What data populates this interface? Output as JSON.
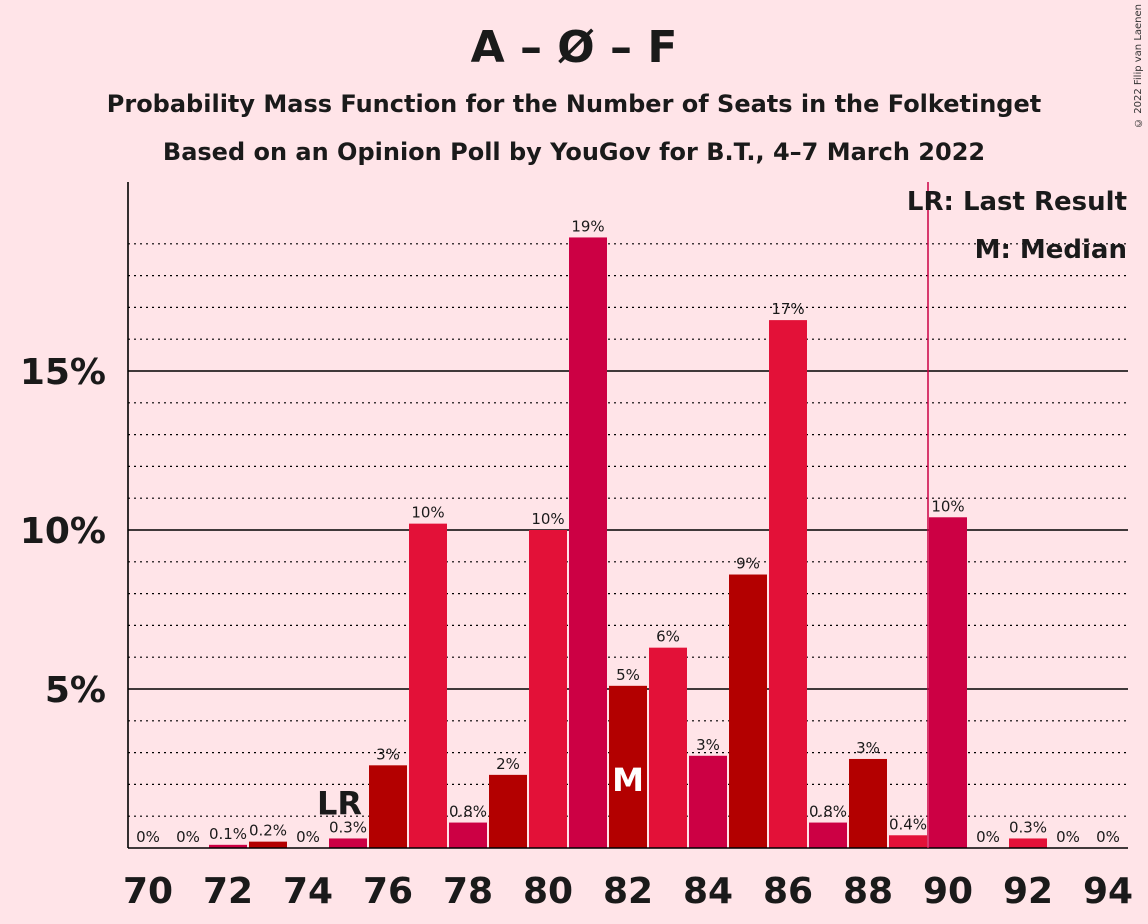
{
  "title": "A – Ø – F",
  "subtitle_1": "Probability Mass Function for the Number of Seats in the Folketinget",
  "subtitle_2": "Based on an Opinion Poll by YouGov for B.T., 4–7 March 2022",
  "copyright": "© 2022 Filip van Laenen",
  "legend": {
    "last_result": "LR: Last Result",
    "median": "M: Median"
  },
  "colors": {
    "background": "#FFE4E8",
    "bar_dark": "#B30000",
    "bar_mid": "#CC0044",
    "bar_light": "#E31138",
    "lr_line": "#CC0044"
  },
  "chart_data": {
    "type": "bar",
    "x": [
      70,
      71,
      72,
      73,
      74,
      75,
      76,
      77,
      78,
      79,
      80,
      81,
      82,
      83,
      84,
      85,
      86,
      87,
      88,
      89,
      90,
      91,
      92,
      93,
      94
    ],
    "values": [
      0,
      0,
      0.1,
      0.2,
      0,
      0.3,
      2.6,
      10.2,
      0.8,
      2.3,
      10.0,
      19.2,
      5.1,
      6.3,
      2.9,
      8.6,
      16.6,
      0.8,
      2.8,
      0.4,
      10.4,
      0,
      0.3,
      0,
      0
    ],
    "data_labels": [
      "0%",
      "0%",
      "0.1%",
      "0.2%",
      "0%",
      "0.3%",
      "3%",
      "10%",
      "0.8%",
      "2%",
      "10%",
      "19%",
      "5%",
      "6%",
      "3%",
      "9%",
      "17%",
      "0.8%",
      "3%",
      "0.4%",
      "10%",
      "0%",
      "0.3%",
      "0%",
      "0%"
    ],
    "x_tick_labels": [
      "70",
      "72",
      "74",
      "76",
      "78",
      "80",
      "82",
      "84",
      "86",
      "88",
      "90",
      "92",
      "94"
    ],
    "y_tick_labels": [
      "5%",
      "10%",
      "15%"
    ],
    "y_ticks": [
      5,
      10,
      15
    ],
    "ylim": [
      0,
      21
    ],
    "last_result": 75,
    "last_result_label": "LR",
    "median": 82,
    "median_label": "M",
    "majority_line": 89.5
  }
}
